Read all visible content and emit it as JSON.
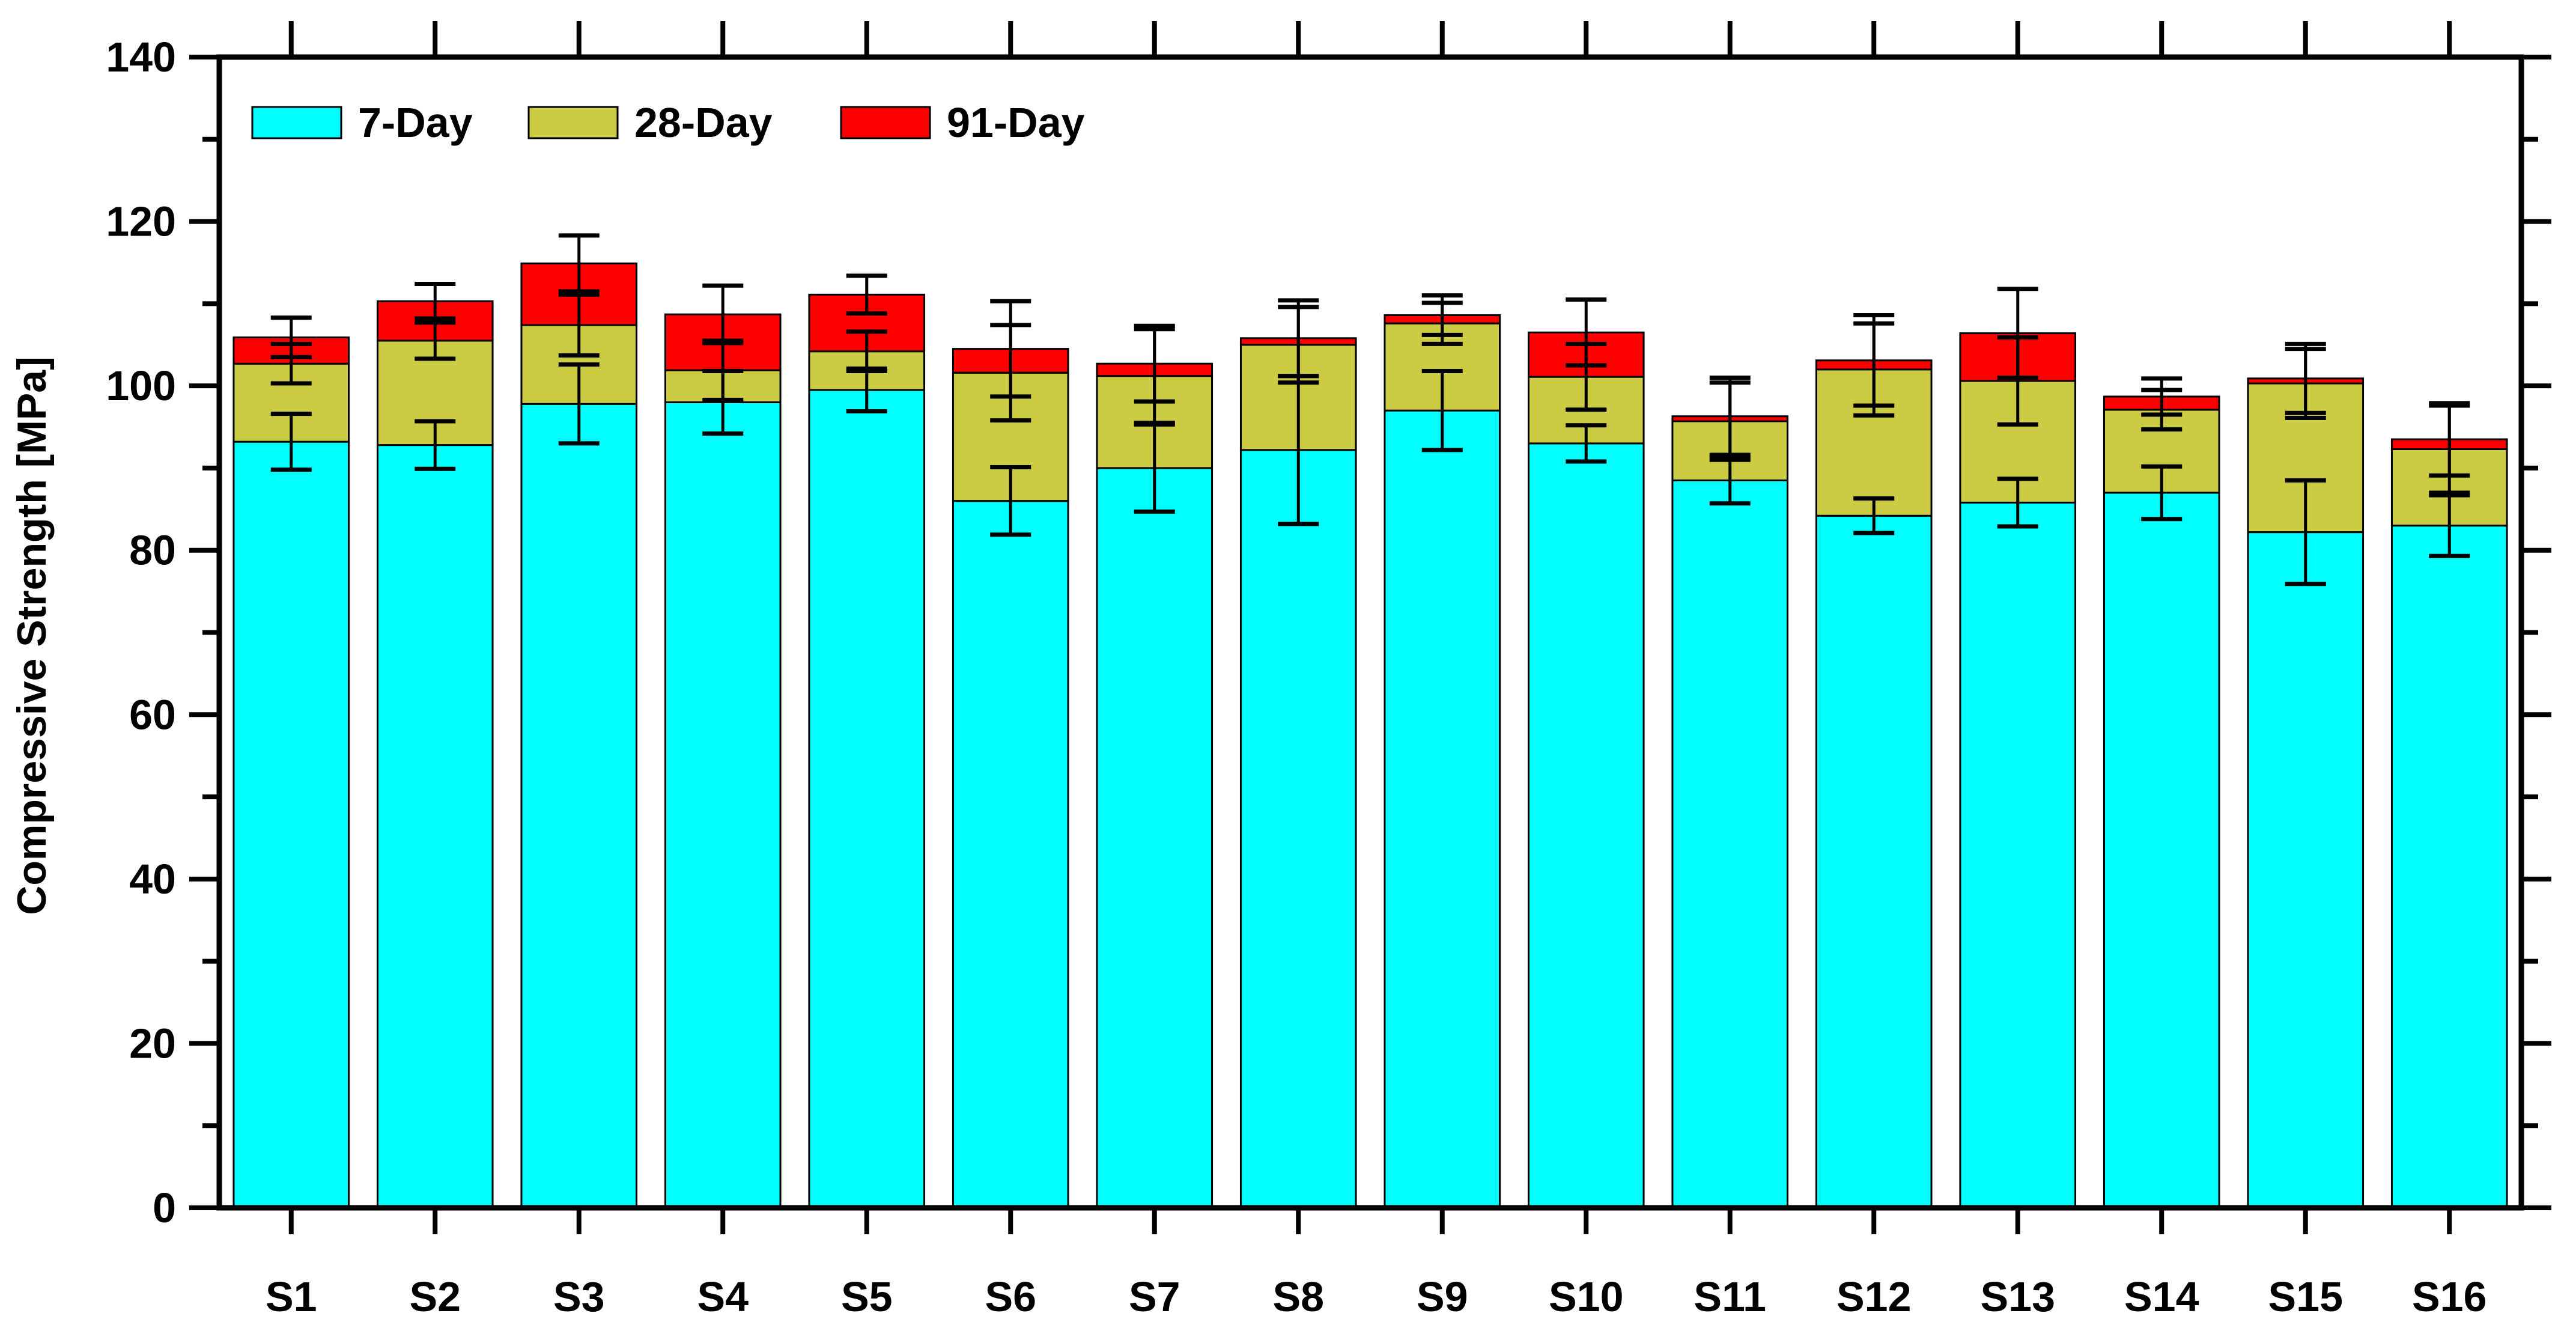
{
  "chart_data": {
    "type": "bar",
    "stacked": true,
    "title": "",
    "xlabel": "",
    "ylabel": "Compressive Strength [MPa]",
    "ylim": [
      0,
      140
    ],
    "yticks": [
      0,
      20,
      40,
      60,
      80,
      100,
      120,
      140
    ],
    "y_minor_step": 10,
    "grid": false,
    "legend_position": "top-left",
    "categories": [
      "S1",
      "S2",
      "S3",
      "S4",
      "S5",
      "S6",
      "S7",
      "S8",
      "S9",
      "S10",
      "S11",
      "S12",
      "S13",
      "S14",
      "S15",
      "S16"
    ],
    "series": [
      {
        "name": "7-Day",
        "color": "#00ffff",
        "values": [
          93.2,
          92.8,
          97.8,
          98.0,
          99.5,
          86.0,
          90.0,
          92.2,
          97.0,
          93.0,
          88.5,
          84.2,
          85.8,
          87.0,
          82.2,
          83.0
        ],
        "errors": [
          3.4,
          2.9,
          4.8,
          3.8,
          2.6,
          4.1,
          5.3,
          9.0,
          4.8,
          2.2,
          2.8,
          2.1,
          2.9,
          3.2,
          6.3,
          3.7
        ]
      },
      {
        "name": "28-Day",
        "color": "#cccc44",
        "values": [
          9.5,
          12.7,
          9.6,
          3.9,
          4.7,
          15.6,
          11.2,
          12.8,
          10.6,
          8.1,
          7.2,
          17.8,
          14.8,
          10.1,
          18.1,
          9.3
        ],
        "errors": [
          2.4,
          2.2,
          3.7,
          3.6,
          2.4,
          5.8,
          5.7,
          4.6,
          2.5,
          4.0,
          4.7,
          5.6,
          5.3,
          2.4,
          4.2,
          5.3
        ]
      },
      {
        "name": "91-Day",
        "color": "#ff0000",
        "values": [
          3.2,
          4.8,
          7.5,
          6.8,
          6.9,
          2.9,
          1.5,
          0.8,
          1.0,
          5.4,
          0.6,
          1.1,
          5.8,
          1.6,
          0.6,
          1.2
        ],
        "errors": [
          2.4,
          2.1,
          3.4,
          3.5,
          2.3,
          5.8,
          4.6,
          4.6,
          2.4,
          4.0,
          4.7,
          5.5,
          5.4,
          2.2,
          4.2,
          4.4
        ]
      }
    ]
  }
}
